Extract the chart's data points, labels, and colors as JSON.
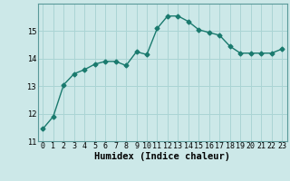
{
  "x": [
    0,
    1,
    2,
    3,
    4,
    5,
    6,
    7,
    8,
    9,
    10,
    11,
    12,
    13,
    14,
    15,
    16,
    17,
    18,
    19,
    20,
    21,
    22,
    23
  ],
  "y": [
    11.45,
    11.9,
    13.05,
    13.45,
    13.6,
    13.8,
    13.9,
    13.9,
    13.75,
    14.25,
    14.15,
    15.1,
    15.55,
    15.55,
    15.35,
    15.05,
    14.95,
    14.85,
    14.45,
    14.2,
    14.2,
    14.2,
    14.2,
    14.35
  ],
  "line_color": "#1a7a6e",
  "marker_color": "#1a7a6e",
  "bg_color": "#cce8e8",
  "grid_color": "#aad4d4",
  "xlabel": "Humidex (Indice chaleur)",
  "ylim": [
    11,
    16
  ],
  "xlim": [
    -0.5,
    23.5
  ],
  "yticks": [
    11,
    12,
    13,
    14,
    15
  ],
  "xticks": [
    0,
    1,
    2,
    3,
    4,
    5,
    6,
    7,
    8,
    9,
    10,
    11,
    12,
    13,
    14,
    15,
    16,
    17,
    18,
    19,
    20,
    21,
    22,
    23
  ],
  "tick_fontsize": 6,
  "xlabel_fontsize": 7.5
}
